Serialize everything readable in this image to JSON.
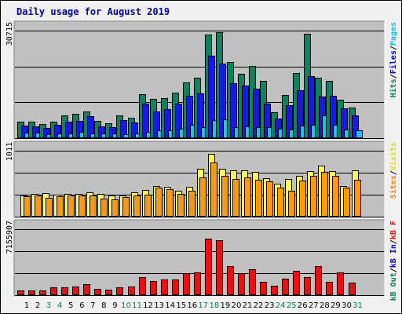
{
  "chart_data": [
    {
      "type": "bar",
      "title": "Daily usage for August 2019",
      "panel": "hits",
      "ylabel_max": "30715",
      "ylim": [
        0,
        30715
      ],
      "legend": [
        "Pages",
        "/",
        "Files",
        "/",
        "Hits"
      ],
      "legend_colors": [
        "#00c0ff",
        "#000000",
        "#0000ff",
        "#000000",
        "#008060"
      ],
      "categories": [
        "1",
        "2",
        "3",
        "4",
        "5",
        "6",
        "7",
        "8",
        "9",
        "10",
        "11",
        "12",
        "13",
        "14",
        "15",
        "16",
        "17",
        "18",
        "19",
        "20",
        "21",
        "22",
        "23",
        "24",
        "25",
        "26",
        "27",
        "28",
        "29",
        "30",
        "31"
      ],
      "series": [
        {
          "name": "Hits",
          "color": "#108060",
          "values": [
            4600,
            4800,
            4000,
            4700,
            6600,
            7000,
            7700,
            5000,
            4300,
            6500,
            5800,
            12600,
            11200,
            11500,
            13000,
            16000,
            17300,
            29600,
            30200,
            21800,
            18400,
            20600,
            16400,
            7500,
            12300,
            18700,
            29900,
            17200,
            16400,
            10900,
            8800
          ]
        },
        {
          "name": "Files",
          "color": "#1818e8",
          "values": [
            3500,
            3400,
            2900,
            3700,
            4700,
            5000,
            6300,
            3400,
            3100,
            5200,
            4500,
            9800,
            7700,
            8300,
            9800,
            12100,
            12800,
            23600,
            21200,
            15600,
            15000,
            14200,
            9800,
            5600,
            9400,
            13600,
            17800,
            11900,
            12000,
            8600,
            6600
          ]
        },
        {
          "name": "Pages",
          "color": "#20c0f0",
          "values": [
            1600,
            1500,
            1200,
            1300,
            1400,
            1700,
            1300,
            1300,
            1400,
            1200,
            1300,
            1900,
            2300,
            2300,
            2700,
            3800,
            3100,
            5100,
            5300,
            3200,
            3300,
            3200,
            3200,
            2700,
            2400,
            3500,
            3700,
            6400,
            3800,
            2400,
            2200
          ]
        }
      ]
    },
    {
      "type": "bar",
      "panel": "visits",
      "ylabel_max": "1011",
      "ylim": [
        0,
        1011
      ],
      "legend": [
        "Visits",
        "/",
        "Sites"
      ],
      "legend_colors": [
        "#e0e000",
        "#000000",
        "#ff8000"
      ],
      "categories": [
        "1",
        "2",
        "3",
        "4",
        "5",
        "6",
        "7",
        "8",
        "9",
        "10",
        "11",
        "12",
        "13",
        "14",
        "15",
        "16",
        "17",
        "18",
        "19",
        "20",
        "21",
        "22",
        "23",
        "24",
        "25",
        "26",
        "27",
        "28",
        "29",
        "30",
        "31"
      ],
      "series": [
        {
          "name": "Visits",
          "color": "#ffff60",
          "values": [
            330,
            355,
            360,
            340,
            355,
            355,
            370,
            345,
            330,
            320,
            375,
            410,
            470,
            460,
            400,
            455,
            740,
            960,
            740,
            710,
            710,
            690,
            590,
            510,
            580,
            630,
            700,
            780,
            700,
            470,
            710
          ]
        },
        {
          "name": "Sites",
          "color": "#ff9a10",
          "values": [
            310,
            320,
            290,
            310,
            320,
            320,
            330,
            280,
            270,
            295,
            330,
            340,
            440,
            420,
            350,
            400,
            600,
            825,
            630,
            580,
            600,
            560,
            540,
            450,
            400,
            550,
            620,
            690,
            625,
            450,
            560
          ]
        }
      ]
    },
    {
      "type": "bar",
      "panel": "kbytes",
      "ylabel_max": "7155907",
      "ylim": [
        0,
        7155907
      ],
      "legend": [
        "kB F",
        "/",
        "kB In",
        "/",
        "kB Out"
      ],
      "legend_colors": [
        "#ff0000",
        "#000000",
        "#0000ff",
        "#000000",
        "#008060"
      ],
      "categories": [
        "1",
        "2",
        "3",
        "4",
        "5",
        "6",
        "7",
        "8",
        "9",
        "10",
        "11",
        "12",
        "13",
        "14",
        "15",
        "16",
        "17",
        "18",
        "19",
        "20",
        "21",
        "22",
        "23",
        "24",
        "25",
        "26",
        "27",
        "28",
        "29",
        "30",
        "31"
      ],
      "series": [
        {
          "name": "kB F",
          "color": "#e81010",
          "values": [
            490000,
            500000,
            480000,
            810000,
            840000,
            930000,
            1220000,
            640000,
            580000,
            880000,
            920000,
            1990000,
            1520000,
            1700000,
            1730000,
            2360000,
            2510000,
            6150000,
            5950000,
            3110000,
            2420000,
            2770000,
            1490000,
            1050000,
            1780000,
            2600000,
            1940000,
            3110000,
            1450000,
            2510000,
            1350000
          ]
        }
      ]
    }
  ],
  "x_axis_label_colors": {
    "weekday": "#000000",
    "weekend": "#008060"
  },
  "weekend_days": [
    "3",
    "4",
    "10",
    "11",
    "17",
    "18",
    "24",
    "25",
    "31"
  ]
}
